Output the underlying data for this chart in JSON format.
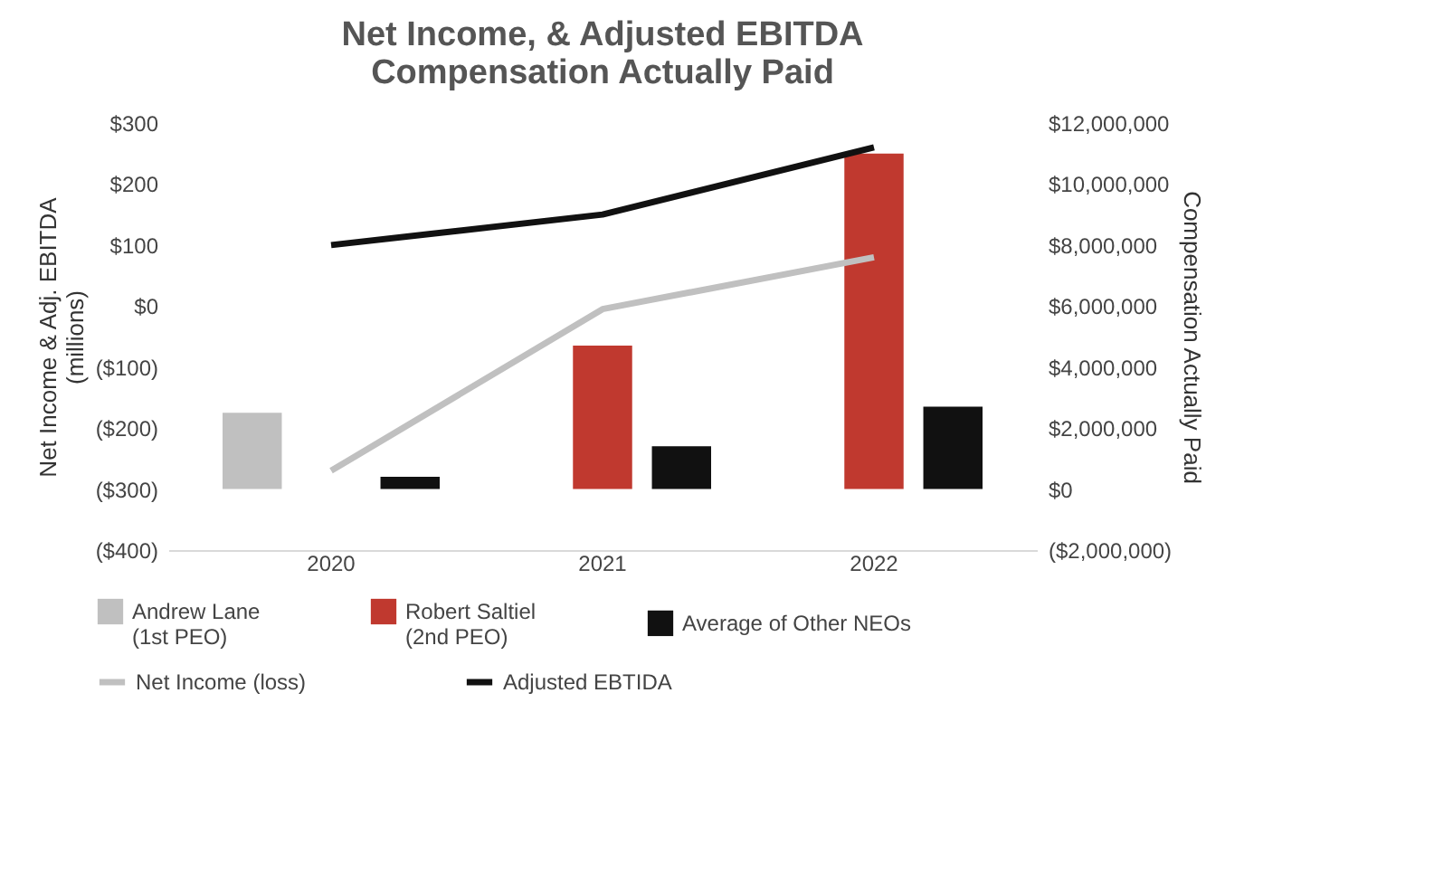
{
  "chart_data": {
    "type": "bar",
    "title": "Net Income, & Adjusted EBITDA\nCompensation Actually Paid",
    "ylabel": "Net Income & Adj. EBITDA\n(millions)",
    "y2label": "Compensation Actually Paid",
    "categories": [
      "2020",
      "2021",
      "2022"
    ],
    "series": [
      {
        "name": "Andrew Lane\n(1st PEO)",
        "axis": "y2",
        "color": "#c0c0c0",
        "values": [
          2500000,
          0,
          null
        ]
      },
      {
        "name": "Robert Saltiel\n(2nd PEO)",
        "axis": "y2",
        "color": "#c0392f",
        "values": [
          null,
          4700000,
          11000000
        ]
      },
      {
        "name": "Average of Other NEOs",
        "axis": "y2",
        "color": "#111111",
        "values": [
          400000,
          1400000,
          2700000
        ]
      },
      {
        "name": "Net Income (loss)",
        "type": "line",
        "axis": "y",
        "color": "#c0c0c0",
        "values": [
          -270,
          -5,
          80
        ]
      },
      {
        "name": "Adjusted EBTIDA",
        "type": "line",
        "axis": "y",
        "color": "#111111",
        "values": [
          100,
          150,
          260
        ]
      }
    ],
    "ylim": [
      -400,
      300
    ],
    "yticks": [
      {
        "value": -400,
        "label": "($400)"
      },
      {
        "value": -300,
        "label": "($300)"
      },
      {
        "value": -200,
        "label": "($200)"
      },
      {
        "value": -100,
        "label": "($100)"
      },
      {
        "value": 0,
        "label": "$0"
      },
      {
        "value": 100,
        "label": "$100"
      },
      {
        "value": 200,
        "label": "$200"
      },
      {
        "value": 300,
        "label": "$300"
      }
    ],
    "y2lim": [
      -2000000,
      12000000
    ],
    "y2ticks": [
      {
        "value": -2000000,
        "label": "($2,000,000)"
      },
      {
        "value": 0,
        "label": "$0"
      },
      {
        "value": 2000000,
        "label": "$2,000,000"
      },
      {
        "value": 4000000,
        "label": "$4,000,000"
      },
      {
        "value": 6000000,
        "label": "$6,000,000"
      },
      {
        "value": 8000000,
        "label": "$8,000,000"
      },
      {
        "value": 10000000,
        "label": "$10,000,000"
      },
      {
        "value": 12000000,
        "label": "$12,000,000"
      }
    ],
    "grid": false,
    "legend": "bottom"
  }
}
